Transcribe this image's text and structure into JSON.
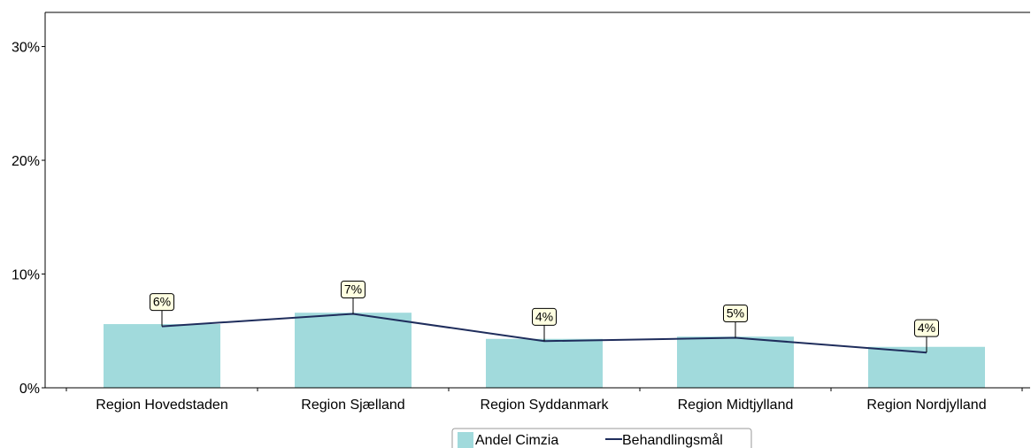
{
  "chart_data": {
    "type": "bar",
    "categories": [
      "Region Hovedstaden",
      "Region Sjælland",
      "Region Syddanmark",
      "Region Midtjylland",
      "Region Nordjylland"
    ],
    "series": [
      {
        "name": "Andel Cimzia",
        "kind": "bar",
        "values": [
          5.6,
          6.6,
          4.3,
          4.5,
          3.6
        ],
        "color": "#a1dadc"
      },
      {
        "name": "Behandlingsmål",
        "kind": "line",
        "values": [
          5.4,
          6.5,
          4.1,
          4.4,
          3.1
        ],
        "color": "#1f2d5c"
      }
    ],
    "data_labels": [
      "6%",
      "7%",
      "4%",
      "5%",
      "4%"
    ],
    "yticks": [
      "0%",
      "10%",
      "20%",
      "30%"
    ],
    "ylim": [
      0,
      33
    ],
    "xlabel": "",
    "ylabel": "",
    "legend": "bottom-center",
    "grid": false
  },
  "colors": {
    "axis": "#000000",
    "label_box_fill": "#ffffe1",
    "label_box_stroke": "#000000"
  }
}
